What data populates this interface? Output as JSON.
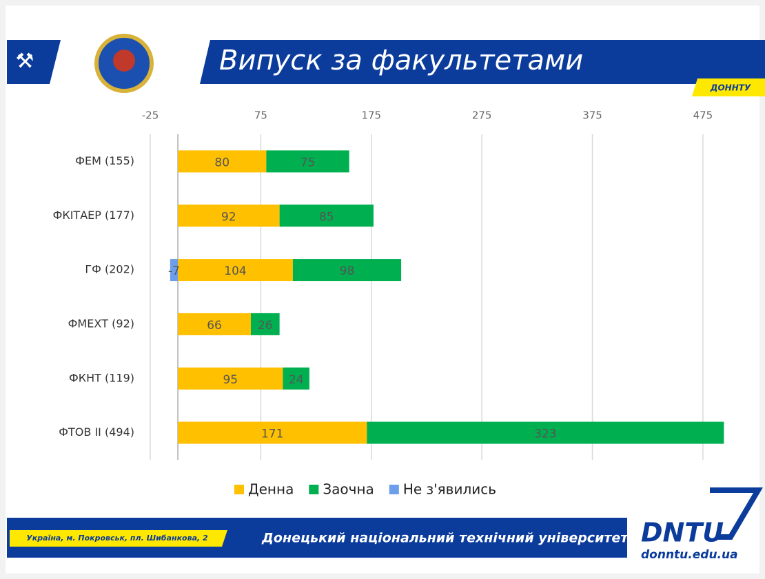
{
  "header": {
    "title": "Випуск за факультетами",
    "badge": "ДОННТУ"
  },
  "footer": {
    "address": "Україна, м. Покровськ, пл. Шибанкова, 2",
    "university": "Донецький національний технічний університет",
    "logo": "DNTU",
    "site": "donntu.edu.ua"
  },
  "chart_data": {
    "type": "stacked-barh",
    "categories": [
      "ФЕМ (155)",
      "ФКІТАЕР (177)",
      "ГФ (202)",
      "ФМЕХТ (92)",
      "ФКНТ (119)",
      "ФТОВ ІІ (494)"
    ],
    "series": [
      {
        "name": "Денна",
        "color": "#ffc000",
        "values": [
          80,
          92,
          104,
          66,
          95,
          171
        ]
      },
      {
        "name": "Заочна",
        "color": "#00b050",
        "values": [
          75,
          85,
          98,
          26,
          24,
          323
        ]
      },
      {
        "name": "Не з'явились",
        "color": "#6d9eeb",
        "values": [
          null,
          null,
          -7,
          null,
          null,
          null
        ]
      }
    ],
    "xlim": [
      -25,
      500
    ],
    "xticks": [
      -25,
      75,
      175,
      275,
      375,
      475
    ],
    "grid": true,
    "legend": "bottom"
  }
}
